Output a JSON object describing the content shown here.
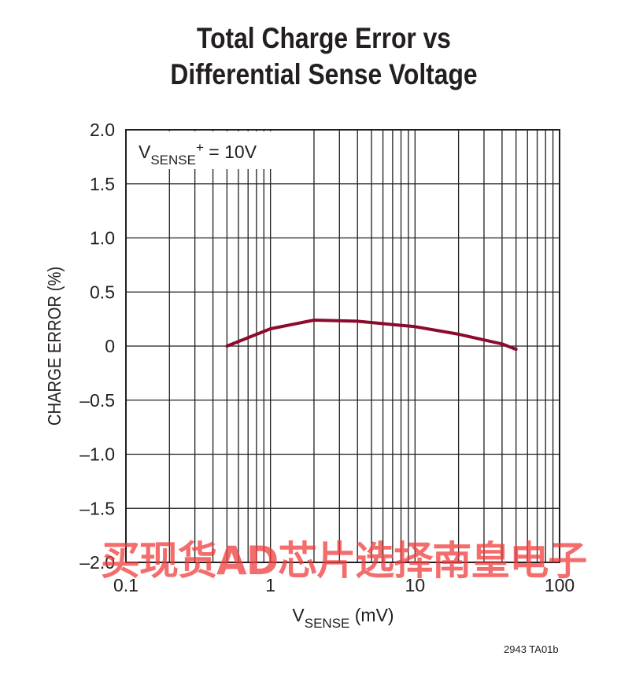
{
  "chart_data": {
    "type": "line",
    "title_lines": [
      "Total Charge Error vs",
      "Differential Sense Voltage"
    ],
    "xlabel": {
      "main": "V",
      "sub": "SENSE",
      "rest": " (mV)"
    },
    "ylabel": "CHARGE ERROR (%)",
    "x_scale": "log",
    "xlim": [
      0.1,
      100
    ],
    "ylim": [
      -2.0,
      2.0
    ],
    "x_ticks": [
      "0.1",
      "1",
      "10",
      "100"
    ],
    "y_ticks": [
      "2.0",
      "1.5",
      "1.0",
      "0.5",
      "0",
      "–0.5",
      "–1.0",
      "–1.5",
      "–2.0"
    ],
    "grid": true,
    "annotation": {
      "main": "V",
      "sub": "SENSE",
      "sup": "+",
      "rest": " = 10V"
    },
    "series": [
      {
        "color": "#8b0a2e",
        "x": [
          0.5,
          1,
          2,
          4,
          10,
          20,
          40,
          50
        ],
        "y": [
          0.0,
          0.16,
          0.24,
          0.23,
          0.18,
          0.11,
          0.02,
          -0.03
        ]
      }
    ]
  },
  "figure_code": "2943 TA01b",
  "watermark": "买现货AD芯片选择南皇电子"
}
